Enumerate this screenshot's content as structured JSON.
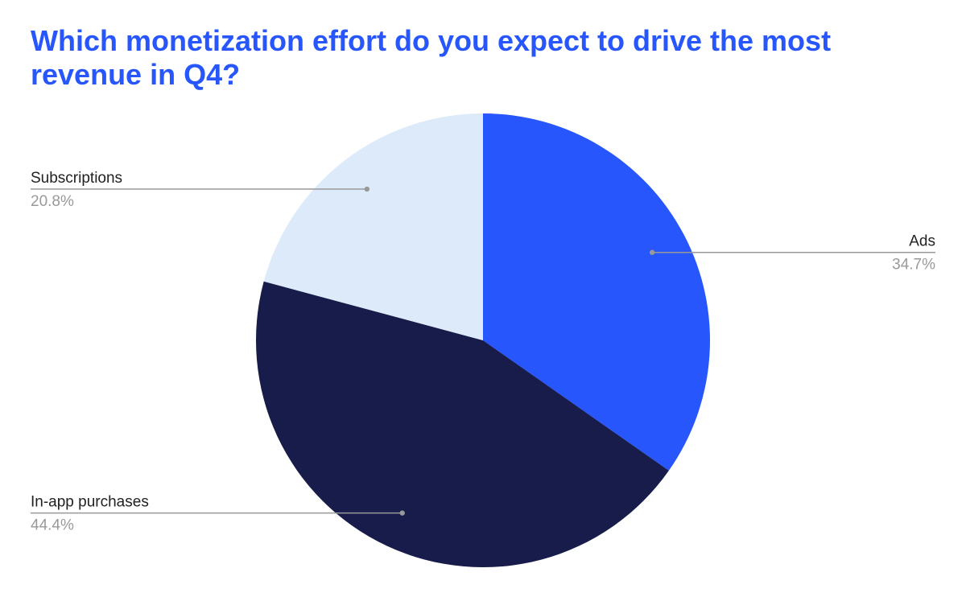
{
  "chart_data": {
    "type": "pie",
    "title": "Which monetization effort do you expect to drive the most revenue in Q4?",
    "title_color": "#2756FD",
    "start_angle_deg": 0,
    "direction": "clockwise",
    "slices": [
      {
        "label": "Ads",
        "value": 34.7,
        "display": "34.7%",
        "color": "#2756FD",
        "label_side": "right"
      },
      {
        "label": "In-app purchases",
        "value": 44.4,
        "display": "44.4%",
        "color": "#171C4B",
        "label_side": "left"
      },
      {
        "label": "Subscriptions",
        "value": 20.8,
        "display": "20.8%",
        "color": "#DCEAFA",
        "label_side": "left"
      }
    ],
    "leader_line_color": "#999999"
  }
}
